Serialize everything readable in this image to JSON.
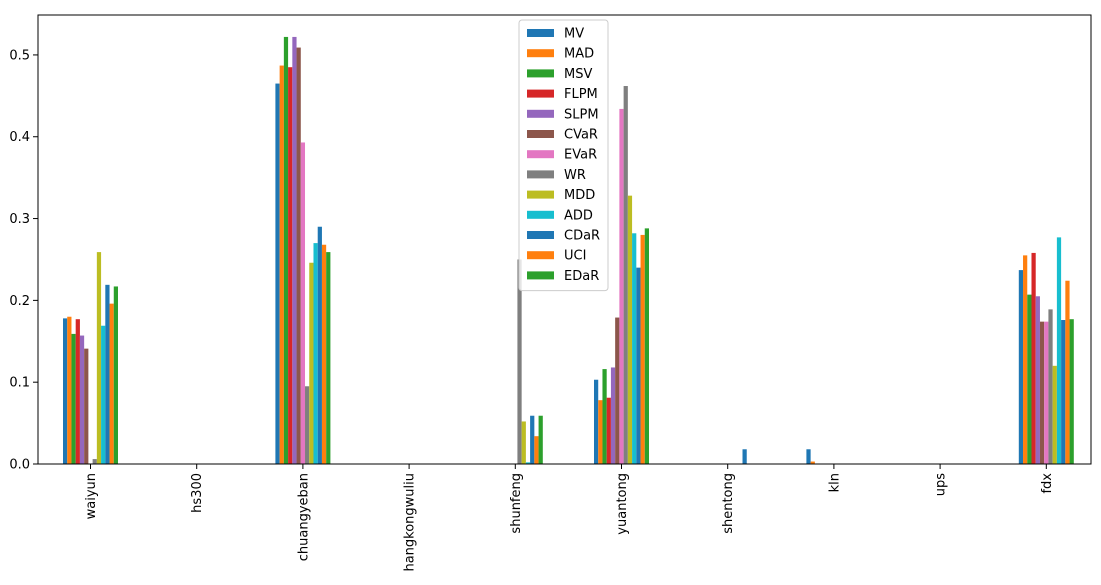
{
  "chart_data": {
    "type": "bar",
    "categories": [
      "waiyun",
      "hs300",
      "chuangyeban",
      "hangkongwuliu",
      "shunfeng",
      "yuantong",
      "shentong",
      "kln",
      "ups",
      "fdx"
    ],
    "ylim": [
      0,
      0.55
    ],
    "yticks": [
      "0.0",
      "0.1",
      "0.2",
      "0.3",
      "0.4",
      "0.5"
    ],
    "legend_position": "top-center",
    "series": [
      {
        "name": "MV",
        "color": "#1f77b4",
        "values": [
          0.178,
          0,
          0.465,
          0,
          0,
          0.103,
          0,
          0.018,
          0,
          0.237
        ]
      },
      {
        "name": "MAD",
        "color": "#ff7f0e",
        "values": [
          0.18,
          0,
          0.487,
          0,
          0,
          0.078,
          0,
          0.003,
          0,
          0.255
        ]
      },
      {
        "name": "MSV",
        "color": "#2ca02c",
        "values": [
          0.159,
          0,
          0.522,
          0,
          0,
          0.116,
          0,
          0,
          0,
          0.207
        ]
      },
      {
        "name": "FLPM",
        "color": "#d62728",
        "values": [
          0.177,
          0,
          0.485,
          0,
          0,
          0.081,
          0,
          0,
          0,
          0.258
        ]
      },
      {
        "name": "SLPM",
        "color": "#9467bd",
        "values": [
          0.157,
          0,
          0.522,
          0,
          0,
          0.118,
          0,
          0,
          0,
          0.205
        ]
      },
      {
        "name": "CVaR",
        "color": "#8c564b",
        "values": [
          0.141,
          0,
          0.509,
          0,
          0,
          0.179,
          0,
          0,
          0,
          0.174
        ]
      },
      {
        "name": "EVaR",
        "color": "#e377c2",
        "values": [
          0,
          0,
          0.393,
          0,
          0,
          0.434,
          0,
          0,
          0,
          0.174
        ]
      },
      {
        "name": "WR",
        "color": "#7f7f7f",
        "values": [
          0.006,
          0,
          0.095,
          0,
          0.25,
          0.462,
          0,
          0,
          0,
          0.189
        ]
      },
      {
        "name": "MDD",
        "color": "#bcbd22",
        "values": [
          0.259,
          0,
          0.246,
          0,
          0.052,
          0.328,
          0,
          0,
          0,
          0.12
        ]
      },
      {
        "name": "ADD",
        "color": "#17becf",
        "values": [
          0.169,
          0,
          0.27,
          0,
          0.002,
          0.282,
          0,
          0,
          0,
          0.277
        ]
      },
      {
        "name": "CDaR",
        "color": "#1f77b4",
        "values": [
          0.219,
          0,
          0.29,
          0,
          0.059,
          0.24,
          0.018,
          0,
          0,
          0.176
        ]
      },
      {
        "name": "UCI",
        "color": "#ff7f0e",
        "values": [
          0.196,
          0,
          0.268,
          0,
          0.034,
          0.28,
          0,
          0,
          0,
          0.224
        ]
      },
      {
        "name": "EDaR",
        "color": "#2ca02c",
        "values": [
          0.217,
          0,
          0.259,
          0,
          0.059,
          0.288,
          0,
          0,
          0,
          0.177
        ]
      }
    ]
  }
}
